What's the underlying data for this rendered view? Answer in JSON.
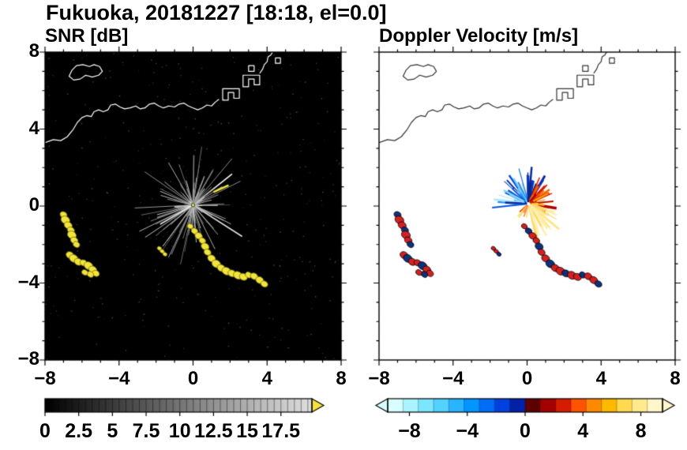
{
  "chart_data": {
    "type": "heatmap",
    "subtype": "radar-ppi-pair",
    "title": "Fukuoka, 20181227 [18:18, el=0.0]",
    "axis": {
      "xlim": [
        -8,
        8
      ],
      "ylim": [
        -8,
        8
      ],
      "x_ticks": [
        -8,
        -4,
        0,
        4,
        8
      ],
      "x_tick_labels": [
        "−8",
        "−4",
        "0",
        "4",
        "8"
      ],
      "y_ticks": [
        8,
        4,
        0,
        -4,
        -8
      ],
      "y_tick_labels": [
        "8",
        "4",
        "0",
        "−4",
        "−8"
      ],
      "minor": [
        -7,
        -6,
        -5,
        -3,
        -2,
        -1,
        1,
        2,
        3,
        5,
        6,
        7
      ]
    },
    "panels": [
      {
        "title": "SNR [dB]",
        "background": "#000000",
        "coast_color": "#ffffff",
        "blob_fill": "#f2e43a",
        "blob_edge": "#6e6a1e",
        "center_dot": "#e8df3a",
        "noise": {
          "seed": 99,
          "count": 380,
          "shade": [
            25,
            90
          ]
        },
        "fan": {
          "seed": 7,
          "count": 125,
          "len": [
            0.3,
            3.3
          ],
          "center": [
            0,
            0.05
          ]
        },
        "extra_streaks": [
          {
            "from": [
              1.1,
              0.72
            ],
            "to": [
              1.92,
              1.08
            ],
            "color": "#f2e43a",
            "w": 2.5
          }
        ],
        "colorbar": {
          "range": [
            0,
            19.8
          ],
          "tick_values": [
            0,
            2.5,
            5,
            7.5,
            10,
            12.5,
            15,
            17.5
          ],
          "tick_labels": [
            "0",
            "2.5",
            "5",
            "7.5",
            "10",
            "12.5",
            "15",
            "17.5"
          ],
          "minor_step": 0.5,
          "gradient": [
            [
              0,
              "#000000"
            ],
            [
              0.8,
              "#b9b9b9"
            ],
            [
              1,
              "#dedede"
            ]
          ],
          "arrow_color": "#f6e23c"
        }
      },
      {
        "title": "Doppler Velocity [m/s]",
        "background": "#ffffff",
        "coast_color": "#333333",
        "blob_colors": [
          "#d42020",
          "#10307a"
        ],
        "fan": {
          "center": [
            0.08,
            0.12
          ],
          "groups": [
            {
              "seed": 11,
              "count": 46,
              "angle": [
                75,
                195
              ],
              "len": [
                0.3,
                2.0
              ],
              "width": [
                1,
                3.4
              ],
              "colors": [
                "#aee8ff",
                "#5fc8ff",
                "#1e90ff",
                "#0050dd",
                "#0a2a99",
                "#7fd4ff",
                "#2f7fe0"
              ]
            },
            {
              "seed": 22,
              "count": 9,
              "angle": [
                58,
                95
              ],
              "len": [
                1.0,
                2.2
              ],
              "width": [
                2,
                4
              ],
              "colors": [
                "#0a2a99",
                "#071f63",
                "#1133bb"
              ]
            },
            {
              "seed": 33,
              "count": 40,
              "angle": [
                -28,
                72
              ],
              "len": [
                0.25,
                1.6
              ],
              "width": [
                1,
                3.4
              ],
              "colors": [
                "#b30000",
                "#e03000",
                "#ff6600",
                "#ff9900",
                "#ffc633",
                "#d41800"
              ]
            },
            {
              "seed": 44,
              "count": 30,
              "angle": [
                -78,
                -18
              ],
              "len": [
                0.6,
                2.7
              ],
              "width": [
                1,
                3
              ],
              "colors": [
                "#ffe680",
                "#fff0aa",
                "#ffd966",
                "#ffefb0"
              ]
            },
            {
              "seed": 55,
              "count": 8,
              "angle": [
                -150,
                -95
              ],
              "len": [
                0.3,
                1.0
              ],
              "width": [
                1,
                2.4
              ],
              "colors": [
                "#ff8844",
                "#e03000",
                "#ffd966"
              ]
            }
          ]
        },
        "colorbar": {
          "range": [
            -9.5,
            9.5
          ],
          "tick_values": [
            -8,
            -4,
            0,
            4,
            8
          ],
          "tick_labels": [
            "−8",
            "−4",
            "0",
            "4",
            "8"
          ],
          "minor_step": 1,
          "colors": [
            "#d8ffff",
            "#aaf4ff",
            "#7de6ff",
            "#52d2ff",
            "#29b4ff",
            "#0095ff",
            "#006df7",
            "#0042df",
            "#0021a8",
            "#5d0000",
            "#a40000",
            "#d61c00",
            "#ff5300",
            "#ff8a00",
            "#ffb900",
            "#ffd94f",
            "#ffea8e",
            "#fff7c9"
          ]
        }
      }
    ],
    "coastline": [
      {
        "closed": false,
        "pts": [
          [
            -8,
            3.3
          ],
          [
            -7.55,
            3.45
          ],
          [
            -7.15,
            3.4
          ],
          [
            -6.8,
            3.6
          ],
          [
            -6.5,
            3.95
          ],
          [
            -6.25,
            4.35
          ],
          [
            -6.0,
            4.6
          ],
          [
            -5.75,
            4.7
          ],
          [
            -5.5,
            4.65
          ],
          [
            -5.35,
            4.9
          ],
          [
            -5.1,
            5.0
          ],
          [
            -4.85,
            4.9
          ],
          [
            -4.6,
            5.0
          ],
          [
            -4.45,
            5.25
          ],
          [
            -4.2,
            5.3
          ],
          [
            -3.95,
            5.15
          ],
          [
            -3.7,
            5.05
          ],
          [
            -3.4,
            5.1
          ],
          [
            -3.1,
            5.2
          ],
          [
            -2.85,
            5.05
          ],
          [
            -2.6,
            5.1
          ],
          [
            -2.35,
            5.3
          ],
          [
            -2.1,
            5.35
          ],
          [
            -1.85,
            5.2
          ],
          [
            -1.6,
            5.1
          ],
          [
            -1.3,
            5.2
          ],
          [
            -1.0,
            5.15
          ],
          [
            -0.75,
            5.3
          ],
          [
            -0.5,
            5.35
          ],
          [
            -0.25,
            5.2
          ],
          [
            0.0,
            5.1
          ],
          [
            0.25,
            5.0
          ],
          [
            0.5,
            5.1
          ],
          [
            0.75,
            5.25
          ],
          [
            1.0,
            5.2
          ],
          [
            1.2,
            5.4
          ],
          [
            1.4,
            5.55
          ]
        ]
      },
      {
        "closed": false,
        "pts": [
          [
            3.6,
            6.9
          ],
          [
            3.75,
            7.1
          ],
          [
            3.85,
            7.35
          ],
          [
            4.0,
            7.5
          ],
          [
            4.05,
            7.75
          ],
          [
            4.2,
            7.85
          ],
          [
            4.3,
            8.0
          ]
        ]
      },
      {
        "closed": true,
        "pts": [
          [
            -6.7,
            6.75
          ],
          [
            -6.55,
            7.05
          ],
          [
            -6.3,
            7.3
          ],
          [
            -5.95,
            7.35
          ],
          [
            -5.6,
            7.25
          ],
          [
            -5.35,
            7.35
          ],
          [
            -5.05,
            7.25
          ],
          [
            -4.9,
            7.0
          ],
          [
            -5.1,
            6.8
          ],
          [
            -5.45,
            6.7
          ],
          [
            -5.8,
            6.8
          ],
          [
            -6.1,
            6.6
          ],
          [
            -6.45,
            6.55
          ]
        ]
      },
      {
        "closed": true,
        "pts": [
          [
            1.6,
            5.5
          ],
          [
            1.9,
            5.5
          ],
          [
            1.9,
            5.9
          ],
          [
            2.2,
            5.9
          ],
          [
            2.2,
            5.6
          ],
          [
            2.5,
            5.6
          ],
          [
            2.5,
            6.1
          ],
          [
            1.6,
            6.1
          ]
        ]
      },
      {
        "closed": true,
        "pts": [
          [
            2.7,
            6.2
          ],
          [
            3.0,
            6.2
          ],
          [
            3.0,
            6.6
          ],
          [
            3.3,
            6.6
          ],
          [
            3.3,
            6.3
          ],
          [
            3.6,
            6.3
          ],
          [
            3.6,
            6.8
          ],
          [
            2.7,
            6.8
          ]
        ]
      },
      {
        "closed": true,
        "pts": [
          [
            3.0,
            7.0
          ],
          [
            3.3,
            7.0
          ],
          [
            3.3,
            7.3
          ],
          [
            3.0,
            7.3
          ]
        ]
      },
      {
        "closed": true,
        "pts": [
          [
            4.45,
            7.42
          ],
          [
            4.72,
            7.42
          ],
          [
            4.72,
            7.7
          ],
          [
            4.45,
            7.7
          ]
        ]
      }
    ],
    "blobs": [
      {
        "pts": [
          [
            -7.0,
            -0.45,
            0.16,
            1
          ],
          [
            -6.9,
            -0.72,
            0.2,
            0
          ],
          [
            -6.75,
            -1.0,
            0.18,
            0
          ],
          [
            -6.6,
            -1.25,
            0.16,
            1
          ],
          [
            -6.55,
            -1.5,
            0.2,
            0
          ],
          [
            -6.42,
            -1.78,
            0.17,
            0
          ],
          [
            -6.3,
            -2.0,
            0.15,
            1
          ]
        ]
      },
      {
        "pts": [
          [
            -6.65,
            -2.55,
            0.18,
            0
          ],
          [
            -6.45,
            -2.72,
            0.2,
            1
          ],
          [
            -6.2,
            -2.9,
            0.18,
            0
          ],
          [
            -5.92,
            -2.95,
            0.16,
            0
          ],
          [
            -5.65,
            -3.1,
            0.2,
            1
          ],
          [
            -5.42,
            -3.3,
            0.18,
            0
          ],
          [
            -5.25,
            -3.5,
            0.16,
            0
          ],
          [
            -5.55,
            -3.55,
            0.15,
            1
          ],
          [
            -5.85,
            -3.45,
            0.14,
            0
          ]
        ]
      },
      {
        "pts": [
          [
            -0.15,
            -1.05,
            0.13,
            0
          ],
          [
            0.08,
            -1.3,
            0.15,
            1
          ],
          [
            0.3,
            -1.55,
            0.17,
            0
          ],
          [
            0.5,
            -1.8,
            0.15,
            0
          ],
          [
            0.65,
            -2.1,
            0.18,
            1
          ],
          [
            0.78,
            -2.4,
            0.16,
            0
          ],
          [
            1.0,
            -2.72,
            0.18,
            0
          ],
          [
            1.25,
            -3.0,
            0.2,
            1
          ],
          [
            1.52,
            -3.22,
            0.18,
            0
          ],
          [
            1.8,
            -3.38,
            0.2,
            0
          ],
          [
            2.1,
            -3.5,
            0.18,
            1
          ],
          [
            2.42,
            -3.6,
            0.2,
            0
          ],
          [
            2.72,
            -3.68,
            0.18,
            0
          ],
          [
            3.0,
            -3.58,
            0.15,
            1
          ],
          [
            3.3,
            -3.65,
            0.17,
            0
          ],
          [
            3.6,
            -3.85,
            0.18,
            0
          ],
          [
            3.85,
            -4.05,
            0.16,
            1
          ]
        ]
      },
      {
        "pts": [
          [
            -1.82,
            -2.2,
            0.1,
            0
          ],
          [
            -1.67,
            -2.35,
            0.1,
            0
          ],
          [
            -1.52,
            -2.5,
            0.1,
            1
          ]
        ]
      }
    ]
  }
}
